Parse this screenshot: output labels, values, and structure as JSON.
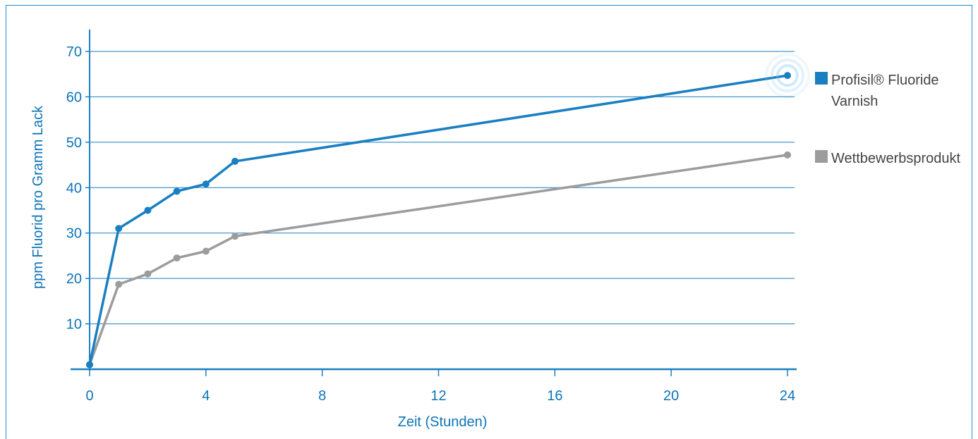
{
  "chart_data": {
    "type": "line",
    "title": "",
    "xlabel": "Zeit (Stunden)",
    "ylabel": "ppm Fluorid pro Gramm Lack",
    "xlim": [
      0,
      24
    ],
    "ylim": [
      0,
      70
    ],
    "xticks": [
      0,
      4,
      8,
      12,
      16,
      20,
      24
    ],
    "yticks": [
      10,
      20,
      30,
      40,
      50,
      60,
      70
    ],
    "grid": "horizontal",
    "legend_placement": "right",
    "series": [
      {
        "name": "Profisil® Fluoride Varnish",
        "name_lines": [
          "Profisil® Fluoride",
          "Varnish"
        ],
        "color": "#1a7fc1",
        "points": [
          [
            0,
            1
          ],
          [
            1,
            31
          ],
          [
            2,
            35
          ],
          [
            3,
            39.2
          ],
          [
            4,
            40.8
          ],
          [
            5,
            45.8
          ],
          [
            24,
            64.7
          ]
        ]
      },
      {
        "name": "Wettbewerbsprodukt",
        "name_lines": [
          "Wettbewerbsprodukt"
        ],
        "color": "#9c9c9c",
        "points": [
          [
            0,
            1
          ],
          [
            1,
            18.7
          ],
          [
            2,
            21
          ],
          [
            3,
            24.5
          ],
          [
            4,
            26
          ],
          [
            5,
            29.3
          ],
          [
            24,
            47.2
          ]
        ]
      }
    ]
  },
  "colors": {
    "axis": "#1a7fc1",
    "grid": "#1a7fc1",
    "text": "#0e74b8",
    "frame": "#1a8fd0"
  }
}
